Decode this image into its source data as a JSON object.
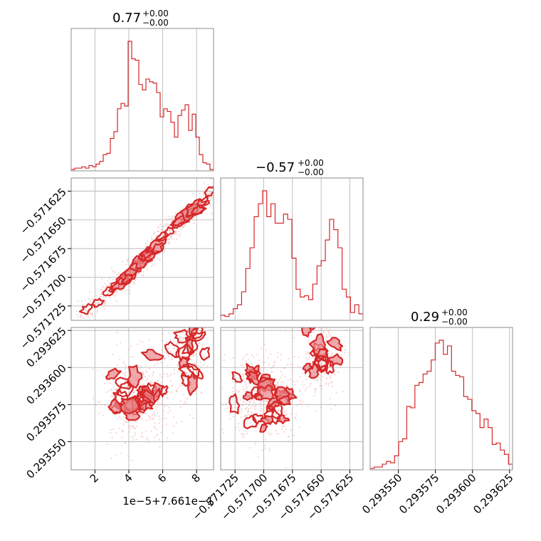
{
  "chart_data": {
    "type": "corner",
    "colors": {
      "line": "#d62728",
      "fill": "#e8868a",
      "scatter": "#f2b6b8",
      "grid": "#b0b0b0",
      "frame": "#8c8c8c"
    },
    "params": [
      {
        "title_value": "0.77",
        "title_plus": "+0.00",
        "title_minus": "−0.00",
        "xlim": [
          0.6,
          9.0
        ],
        "offset_text": "1e−5+7.661e−1"
      },
      {
        "title_value": "−0.57",
        "title_plus": "+0.00",
        "title_minus": "−0.00",
        "xlim": [
          -0.5717375,
          -0.5716135
        ]
      },
      {
        "title_value": "0.29",
        "title_plus": "+0.00",
        "title_minus": "−0.00",
        "xlim": [
          0.293531,
          0.293627
        ]
      }
    ],
    "ticks": {
      "p1": {
        "values": [
          2,
          4,
          6,
          8
        ],
        "labels": [
          "2",
          "4",
          "6",
          "8"
        ]
      },
      "p2": {
        "values": [
          -0.571725,
          -0.5717,
          -0.571675,
          -0.57165,
          -0.571625
        ],
        "labels": [
          "−0.571725",
          "−0.571700",
          "−0.571675",
          "−0.571650",
          "−0.571625"
        ]
      },
      "p3": {
        "values": [
          0.29355,
          0.293575,
          0.2936,
          0.293625
        ],
        "labels": [
          "0.293550",
          "0.293575",
          "0.293600",
          "0.293625"
        ]
      }
    },
    "hist1": [
      1,
      2,
      2,
      3,
      2,
      4,
      3,
      5,
      7,
      12,
      13,
      24,
      29,
      46,
      50,
      48,
      96,
      83,
      82,
      64,
      60,
      68,
      66,
      65,
      58,
      40,
      46,
      44,
      36,
      25,
      41,
      45,
      49,
      30,
      42,
      25,
      12,
      6,
      5,
      1
    ],
    "hist2": [
      4,
      3,
      5,
      9,
      12,
      22,
      40,
      56,
      80,
      90,
      100,
      80,
      90,
      75,
      75,
      82,
      78,
      48,
      24,
      18,
      19,
      16,
      28,
      42,
      46,
      62,
      78,
      70,
      56,
      24,
      18,
      6,
      12,
      5
    ],
    "hist3": [
      1,
      2,
      2,
      4,
      6,
      5,
      10,
      20,
      22,
      45,
      44,
      60,
      62,
      68,
      70,
      78,
      90,
      92,
      82,
      88,
      70,
      67,
      66,
      52,
      50,
      42,
      40,
      30,
      36,
      30,
      18,
      19,
      14,
      11,
      4
    ],
    "corr_12": [
      [
        1.5,
        -0.571728
      ],
      [
        2.2,
        -0.571722
      ],
      [
        2.8,
        -0.571713
      ],
      [
        3.2,
        -0.571708
      ],
      [
        3.6,
        -0.571705
      ],
      [
        4.0,
        -0.571698
      ],
      [
        4.4,
        -0.571692
      ],
      [
        4.8,
        -0.571685
      ],
      [
        5.2,
        -0.57168
      ],
      [
        5.6,
        -0.571673
      ],
      [
        6.0,
        -0.571665
      ],
      [
        6.4,
        -0.57166
      ],
      [
        6.8,
        -0.571653
      ],
      [
        7.2,
        -0.571648
      ],
      [
        7.6,
        -0.571643
      ],
      [
        8.0,
        -0.57164
      ],
      [
        8.4,
        -0.571635
      ],
      [
        8.8,
        -0.571625
      ]
    ],
    "clusters_13": [
      [
        4.6,
        0.29358
      ],
      [
        7.4,
        0.29361
      ]
    ],
    "clusters_23": [
      [
        -0.5717,
        0.29358
      ],
      [
        -0.57165,
        0.29361
      ]
    ]
  }
}
